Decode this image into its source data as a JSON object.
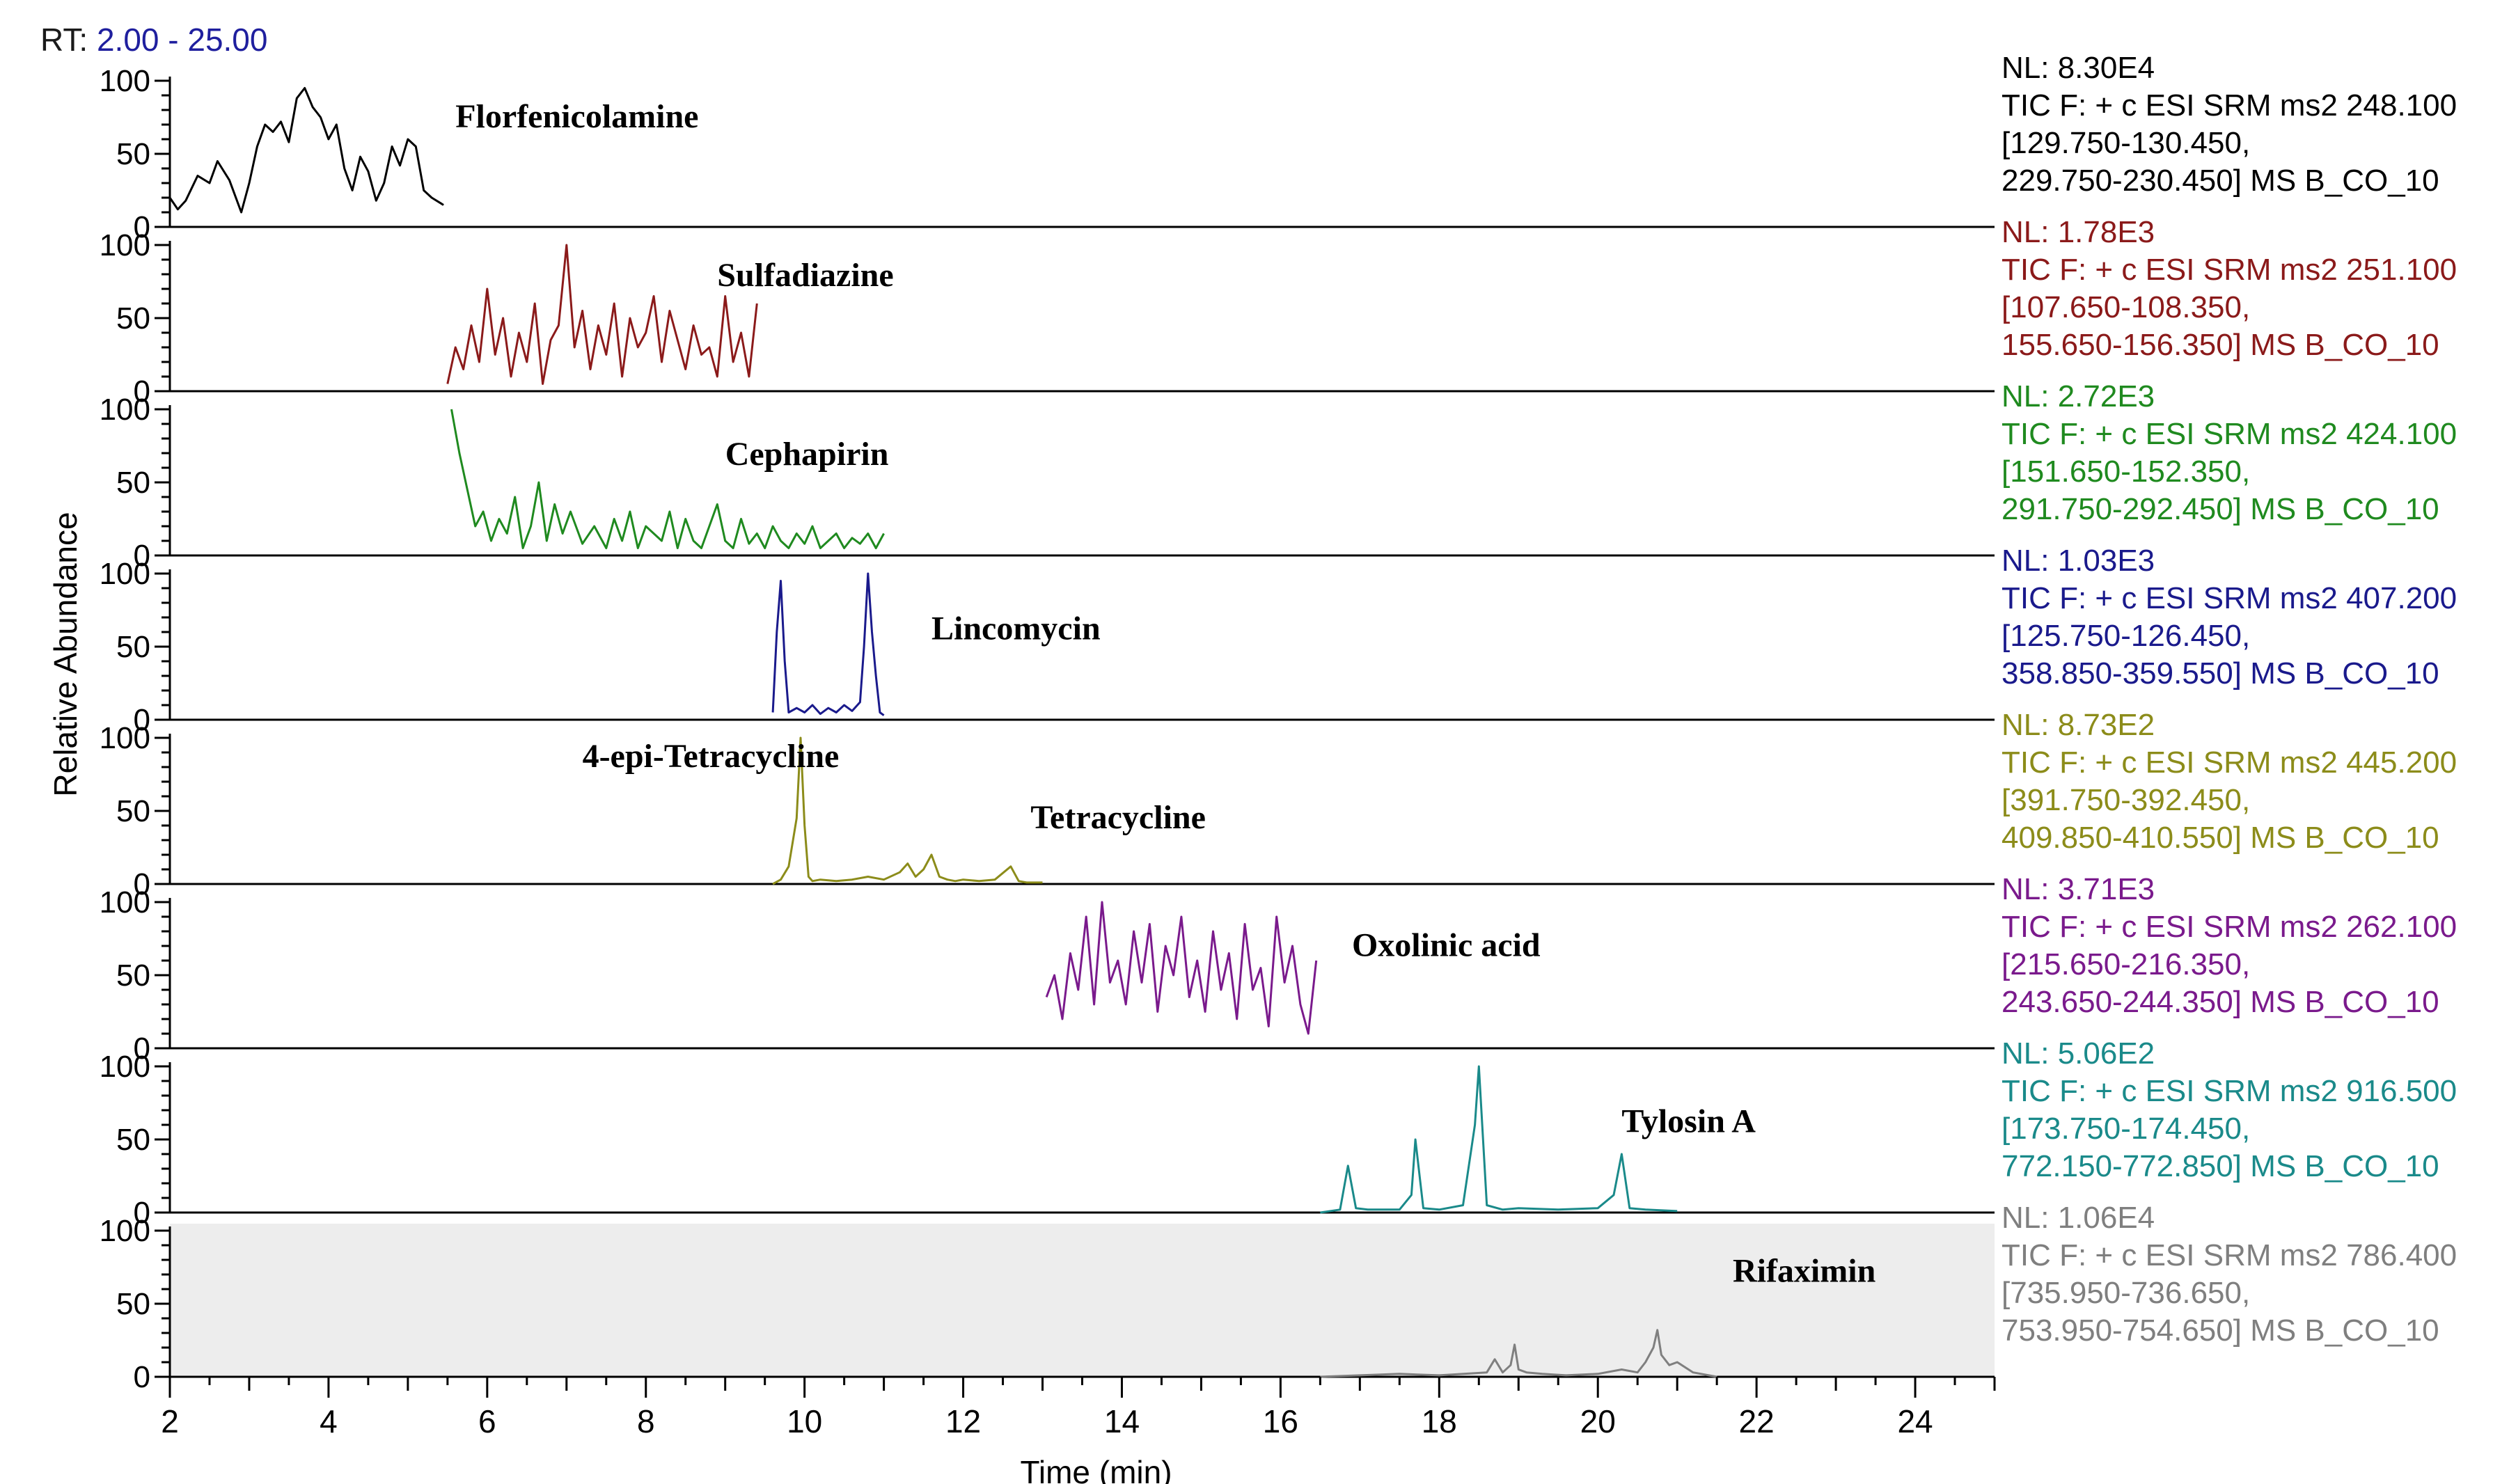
{
  "rt_range": {
    "label": "RT:",
    "value": "2.00 - 25.00"
  },
  "chart_data": {
    "type": "line",
    "title": "",
    "xlabel": "Time (min)",
    "ylabel": "Relative Abundance",
    "xlim": [
      2,
      25
    ],
    "ylim": [
      0,
      100
    ],
    "x_ticks": [
      2,
      4,
      6,
      8,
      10,
      12,
      14,
      16,
      18,
      20,
      22,
      24
    ],
    "y_ticks": [
      0,
      50,
      100
    ],
    "series": [
      {
        "name": "Florfenicolamine",
        "color": "#000000",
        "info": [
          "NL: 8.30E4",
          "TIC F: + c ESI SRM ms2 248.100",
          "[129.750-130.450,",
          "229.750-230.450]  MS B_CO_10"
        ],
        "label_x": 5.6,
        "label_y": 68,
        "x": [
          2.0,
          2.1,
          2.2,
          2.35,
          2.5,
          2.6,
          2.75,
          2.9,
          3.0,
          3.1,
          3.2,
          3.3,
          3.4,
          3.5,
          3.6,
          3.7,
          3.8,
          3.9,
          4.0,
          4.1,
          4.2,
          4.3,
          4.4,
          4.5,
          4.6,
          4.7,
          4.8,
          4.9,
          5.0,
          5.1,
          5.2,
          5.3,
          5.45
        ],
        "y": [
          20,
          12,
          18,
          35,
          30,
          45,
          32,
          10,
          30,
          55,
          70,
          65,
          72,
          58,
          88,
          95,
          82,
          75,
          60,
          70,
          40,
          25,
          48,
          38,
          18,
          30,
          55,
          42,
          60,
          55,
          25,
          20,
          15
        ]
      },
      {
        "name": "Sulfadiazine",
        "color": "#8b1a1a",
        "info": [
          "NL: 1.78E3",
          "TIC F: + c ESI SRM ms2 251.100",
          "[107.650-108.350,",
          "155.650-156.350]  MS B_CO_10"
        ],
        "label_x": 8.9,
        "label_y": 72,
        "x": [
          5.5,
          5.6,
          5.7,
          5.8,
          5.9,
          6.0,
          6.1,
          6.2,
          6.3,
          6.4,
          6.5,
          6.6,
          6.7,
          6.8,
          6.9,
          7.0,
          7.1,
          7.2,
          7.3,
          7.4,
          7.5,
          7.6,
          7.7,
          7.8,
          7.9,
          8.0,
          8.1,
          8.2,
          8.3,
          8.4,
          8.5,
          8.6,
          8.7,
          8.8,
          8.9,
          9.0,
          9.1,
          9.2,
          9.3,
          9.4
        ],
        "y": [
          5,
          30,
          15,
          45,
          20,
          70,
          25,
          50,
          10,
          40,
          20,
          60,
          5,
          35,
          45,
          100,
          30,
          55,
          15,
          45,
          25,
          60,
          10,
          50,
          30,
          40,
          65,
          20,
          55,
          35,
          15,
          45,
          25,
          30,
          10,
          65,
          20,
          40,
          10,
          60
        ]
      },
      {
        "name": "Cephapirin",
        "color": "#1f8a1f",
        "info": [
          "NL: 2.72E3",
          "TIC F: + c ESI SRM ms2 424.100",
          "[151.650-152.350,",
          "291.750-292.450]  MS B_CO_10"
        ],
        "label_x": 9.0,
        "label_y": 62,
        "x": [
          5.55,
          5.65,
          5.75,
          5.85,
          5.95,
          6.05,
          6.15,
          6.25,
          6.35,
          6.45,
          6.55,
          6.65,
          6.75,
          6.85,
          6.95,
          7.05,
          7.2,
          7.35,
          7.5,
          7.6,
          7.7,
          7.8,
          7.9,
          8.0,
          8.1,
          8.2,
          8.3,
          8.4,
          8.5,
          8.6,
          8.7,
          8.8,
          8.9,
          9.0,
          9.1,
          9.2,
          9.3,
          9.4,
          9.5,
          9.6,
          9.7,
          9.8,
          9.9,
          10.0,
          10.1,
          10.2,
          10.3,
          10.4,
          10.5,
          10.6,
          10.7,
          10.8,
          10.9,
          11.0
        ],
        "y": [
          100,
          70,
          45,
          20,
          30,
          10,
          25,
          15,
          40,
          5,
          20,
          50,
          10,
          35,
          15,
          30,
          8,
          20,
          5,
          25,
          10,
          30,
          5,
          20,
          15,
          10,
          30,
          5,
          25,
          10,
          5,
          20,
          35,
          10,
          5,
          25,
          8,
          15,
          5,
          20,
          10,
          5,
          15,
          8,
          20,
          5,
          10,
          15,
          5,
          12,
          8,
          15,
          5,
          15
        ]
      },
      {
        "name": "Lincomycin",
        "color": "#1a1a8c",
        "info": [
          "NL: 1.03E3",
          "TIC F: + c ESI SRM ms2 407.200",
          "[125.750-126.450,",
          "358.850-359.550]  MS B_CO_10"
        ],
        "label_x": 11.6,
        "label_y": 55,
        "x": [
          9.6,
          9.65,
          9.7,
          9.75,
          9.8,
          9.9,
          10.0,
          10.1,
          10.2,
          10.3,
          10.4,
          10.5,
          10.6,
          10.7,
          10.75,
          10.8,
          10.85,
          10.9,
          10.95,
          11.0
        ],
        "y": [
          5,
          60,
          95,
          40,
          5,
          8,
          5,
          10,
          4,
          8,
          5,
          10,
          6,
          12,
          50,
          100,
          60,
          30,
          5,
          3
        ]
      },
      {
        "name": "Tetracycline",
        "color": "#8c8c1a",
        "info": [
          "NL: 8.73E2",
          "TIC F: + c ESI SRM ms2 445.200",
          "[391.750-392.450,",
          "409.850-410.550]  MS B_CO_10"
        ],
        "label_x": 12.85,
        "label_y": 38,
        "label2": "4-epi-Tetracycline",
        "label2_x": 7.2,
        "label2_y": 80,
        "x": [
          9.6,
          9.7,
          9.8,
          9.9,
          9.95,
          10.0,
          10.05,
          10.1,
          10.2,
          10.4,
          10.6,
          10.8,
          11.0,
          11.2,
          11.3,
          11.4,
          11.5,
          11.6,
          11.7,
          11.8,
          11.9,
          12.0,
          12.2,
          12.4,
          12.6,
          12.7,
          12.8,
          13.0
        ],
        "y": [
          0,
          3,
          12,
          45,
          100,
          40,
          5,
          2,
          3,
          2,
          3,
          5,
          3,
          8,
          14,
          5,
          10,
          20,
          5,
          3,
          2,
          3,
          2,
          3,
          12,
          2,
          1,
          1
        ]
      },
      {
        "name": "Oxolinic acid",
        "color": "#7a1a8c",
        "info": [
          "NL: 3.71E3",
          "TIC F: + c ESI SRM ms2 262.100",
          "[215.650-216.350,",
          "243.650-244.350]  MS B_CO_10"
        ],
        "label_x": 16.9,
        "label_y": 63,
        "x": [
          13.05,
          13.15,
          13.25,
          13.35,
          13.45,
          13.55,
          13.65,
          13.75,
          13.85,
          13.95,
          14.05,
          14.15,
          14.25,
          14.35,
          14.45,
          14.55,
          14.65,
          14.75,
          14.85,
          14.95,
          15.05,
          15.15,
          15.25,
          15.35,
          15.45,
          15.55,
          15.65,
          15.75,
          15.85,
          15.95,
          16.05,
          16.15,
          16.25,
          16.35,
          16.45
        ],
        "y": [
          35,
          50,
          20,
          65,
          40,
          90,
          30,
          100,
          45,
          60,
          30,
          80,
          45,
          85,
          25,
          70,
          50,
          90,
          35,
          60,
          25,
          80,
          40,
          65,
          20,
          85,
          40,
          55,
          15,
          90,
          45,
          70,
          30,
          10,
          60
        ]
      },
      {
        "name": "Tylosin A",
        "color": "#1a8a8a",
        "info": [
          "NL: 5.06E2",
          "TIC F: + c ESI SRM ms2 916.500",
          "[173.750-174.450,",
          "772.150-772.850]  MS B_CO_10"
        ],
        "label_x": 20.3,
        "label_y": 55,
        "x": [
          16.5,
          16.75,
          16.85,
          16.95,
          17.1,
          17.5,
          17.65,
          17.7,
          17.8,
          18.0,
          18.3,
          18.45,
          18.5,
          18.6,
          18.8,
          19.0,
          19.5,
          20.0,
          20.2,
          20.3,
          20.4,
          20.6,
          21.0
        ],
        "y": [
          0,
          2,
          32,
          3,
          2,
          2,
          12,
          50,
          3,
          2,
          5,
          60,
          100,
          5,
          2,
          3,
          2,
          3,
          12,
          40,
          3,
          2,
          1
        ]
      },
      {
        "name": "Rifaximin",
        "color": "#7f7f7f",
        "info": [
          "NL: 1.06E4",
          "TIC F: + c ESI SRM ms2 786.400",
          "[735.950-736.650,",
          "753.950-754.650]  MS B_CO_10"
        ],
        "label_x": 21.7,
        "label_y": 65,
        "x": [
          16.5,
          17.0,
          17.5,
          18.0,
          18.6,
          18.7,
          18.8,
          18.9,
          18.95,
          19.0,
          19.1,
          19.3,
          19.6,
          20.0,
          20.3,
          20.5,
          20.6,
          20.7,
          20.75,
          20.8,
          20.9,
          21.0,
          21.2,
          21.5
        ],
        "y": [
          0,
          1,
          2,
          1,
          3,
          12,
          3,
          8,
          22,
          5,
          3,
          2,
          1,
          2,
          5,
          3,
          10,
          20,
          32,
          15,
          8,
          10,
          3,
          0
        ]
      }
    ]
  }
}
